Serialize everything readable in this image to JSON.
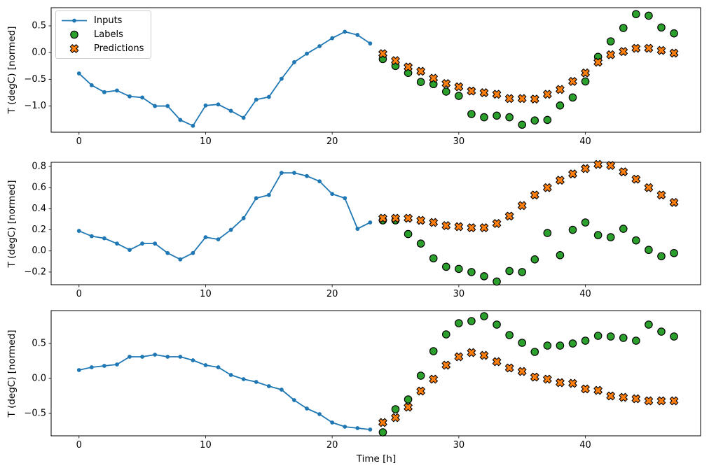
{
  "figure": {
    "background": "#ffffff",
    "legend": {
      "position": "upper-left",
      "items": [
        {
          "label": "Inputs",
          "marker": "line-dot",
          "color": "#1f77b4"
        },
        {
          "label": "Labels",
          "marker": "circle",
          "color": "#2ca02c"
        },
        {
          "label": "Predictions",
          "marker": "X",
          "color": "#ff7f0e"
        }
      ]
    },
    "colors": {
      "inputs": "#1f77b4",
      "labels": "#2ca02c",
      "predictions": "#ff7f0e",
      "marker_edge": "#000000",
      "spine": "#000000",
      "text": "#000000"
    }
  },
  "chart_data": [
    {
      "type": "line",
      "subplot": "top",
      "ylabel": "T (degC) [normed]",
      "xlabel": "",
      "grid": false,
      "xticks": [
        0,
        10,
        20,
        30,
        40
      ],
      "yticks": [
        0.5,
        0.0,
        -0.5,
        -1.0
      ],
      "xlim": [
        -2.2,
        49.1
      ],
      "ylim": [
        -1.49,
        0.84
      ],
      "series": [
        {
          "name": "Inputs",
          "type": "line-dot",
          "color": "#1f77b4",
          "x": [
            0,
            1,
            2,
            3,
            4,
            5,
            6,
            7,
            8,
            9,
            10,
            11,
            12,
            13,
            14,
            15,
            16,
            17,
            18,
            19,
            20,
            21,
            22,
            23
          ],
          "y": [
            -0.39,
            -0.61,
            -0.74,
            -0.71,
            -0.82,
            -0.84,
            -1.0,
            -1.0,
            -1.26,
            -1.37,
            -0.99,
            -0.97,
            -1.09,
            -1.22,
            -0.88,
            -0.83,
            -0.49,
            -0.18,
            -0.02,
            0.12,
            0.27,
            0.39,
            0.33,
            0.17
          ]
        },
        {
          "name": "Labels",
          "type": "scatter-circle",
          "color": "#2ca02c",
          "x": [
            24,
            25,
            26,
            27,
            28,
            29,
            30,
            31,
            32,
            33,
            34,
            35,
            36,
            37,
            38,
            39,
            40,
            41,
            42,
            43,
            44,
            45,
            46,
            47
          ],
          "y": [
            -0.12,
            -0.25,
            -0.38,
            -0.55,
            -0.59,
            -0.73,
            -0.81,
            -1.15,
            -1.21,
            -1.18,
            -1.21,
            -1.35,
            -1.27,
            -1.26,
            -0.99,
            -0.84,
            -0.54,
            -0.08,
            0.21,
            0.46,
            0.72,
            0.69,
            0.47,
            0.36
          ]
        },
        {
          "name": "Predictions",
          "type": "scatter-x",
          "color": "#ff7f0e",
          "x": [
            24,
            25,
            26,
            27,
            28,
            29,
            30,
            31,
            32,
            33,
            34,
            35,
            36,
            37,
            38,
            39,
            40,
            41,
            42,
            43,
            44,
            45,
            46,
            47
          ],
          "y": [
            -0.02,
            -0.15,
            -0.27,
            -0.35,
            -0.48,
            -0.58,
            -0.64,
            -0.72,
            -0.75,
            -0.78,
            -0.86,
            -0.86,
            -0.87,
            -0.78,
            -0.69,
            -0.54,
            -0.38,
            -0.18,
            -0.04,
            0.02,
            0.08,
            0.08,
            0.04,
            -0.01
          ]
        }
      ]
    },
    {
      "type": "line",
      "subplot": "middle",
      "ylabel": "T (degC) [normed]",
      "xlabel": "",
      "grid": false,
      "xticks": [
        0,
        10,
        20,
        30,
        40
      ],
      "yticks": [
        0.8,
        0.6,
        0.4,
        0.2,
        0.0,
        -0.2
      ],
      "xlim": [
        -2.2,
        49.1
      ],
      "ylim": [
        -0.32,
        0.84
      ],
      "series": [
        {
          "name": "Inputs",
          "type": "line-dot",
          "color": "#1f77b4",
          "x": [
            0,
            1,
            2,
            3,
            4,
            5,
            6,
            7,
            8,
            9,
            10,
            11,
            12,
            13,
            14,
            15,
            16,
            17,
            18,
            19,
            20,
            21,
            22,
            23
          ],
          "y": [
            0.19,
            0.14,
            0.12,
            0.07,
            0.01,
            0.07,
            0.07,
            -0.02,
            -0.08,
            -0.02,
            0.13,
            0.11,
            0.2,
            0.31,
            0.5,
            0.53,
            0.74,
            0.74,
            0.71,
            0.66,
            0.54,
            0.5,
            0.21,
            0.27
          ]
        },
        {
          "name": "Labels",
          "type": "scatter-circle",
          "color": "#2ca02c",
          "x": [
            24,
            25,
            26,
            27,
            28,
            29,
            30,
            31,
            32,
            33,
            34,
            35,
            36,
            37,
            38,
            39,
            40,
            41,
            42,
            43,
            44,
            45,
            46,
            47
          ],
          "y": [
            0.29,
            0.29,
            0.16,
            0.07,
            -0.07,
            -0.15,
            -0.17,
            -0.2,
            -0.24,
            -0.29,
            -0.19,
            -0.2,
            -0.08,
            0.17,
            -0.04,
            0.2,
            0.27,
            0.15,
            0.13,
            0.21,
            0.1,
            0.01,
            -0.05,
            -0.02
          ]
        },
        {
          "name": "Predictions",
          "type": "scatter-x",
          "color": "#ff7f0e",
          "x": [
            24,
            25,
            26,
            27,
            28,
            29,
            30,
            31,
            32,
            33,
            34,
            35,
            36,
            37,
            38,
            39,
            40,
            41,
            42,
            43,
            44,
            45,
            46,
            47
          ],
          "y": [
            0.31,
            0.31,
            0.31,
            0.29,
            0.27,
            0.24,
            0.23,
            0.22,
            0.22,
            0.26,
            0.33,
            0.43,
            0.53,
            0.6,
            0.67,
            0.73,
            0.78,
            0.82,
            0.81,
            0.75,
            0.68,
            0.6,
            0.53,
            0.46
          ]
        }
      ]
    },
    {
      "type": "line",
      "subplot": "bottom",
      "ylabel": "T (degC) [normed]",
      "xlabel": "Time [h]",
      "grid": false,
      "xticks": [
        0,
        10,
        20,
        30,
        40
      ],
      "yticks": [
        0.5,
        0.0,
        -0.5
      ],
      "xlim": [
        -2.2,
        49.1
      ],
      "ylim": [
        -0.82,
        0.97
      ],
      "series": [
        {
          "name": "Inputs",
          "type": "line-dot",
          "color": "#1f77b4",
          "x": [
            0,
            1,
            2,
            3,
            4,
            5,
            6,
            7,
            8,
            9,
            10,
            11,
            12,
            13,
            14,
            15,
            16,
            17,
            18,
            19,
            20,
            21,
            22,
            23
          ],
          "y": [
            0.12,
            0.16,
            0.18,
            0.2,
            0.31,
            0.31,
            0.34,
            0.31,
            0.31,
            0.26,
            0.19,
            0.16,
            0.05,
            -0.01,
            -0.05,
            -0.11,
            -0.16,
            -0.31,
            -0.43,
            -0.51,
            -0.63,
            -0.69,
            -0.71,
            -0.73
          ]
        },
        {
          "name": "Labels",
          "type": "scatter-circle",
          "color": "#2ca02c",
          "x": [
            24,
            25,
            26,
            27,
            28,
            29,
            30,
            31,
            32,
            33,
            34,
            35,
            36,
            37,
            38,
            39,
            40,
            41,
            42,
            43,
            44,
            45,
            46,
            47
          ],
          "y": [
            -0.77,
            -0.44,
            -0.3,
            0.04,
            0.39,
            0.63,
            0.79,
            0.82,
            0.89,
            0.77,
            0.62,
            0.51,
            0.38,
            0.47,
            0.47,
            0.5,
            0.54,
            0.61,
            0.6,
            0.58,
            0.54,
            0.77,
            0.67,
            0.6
          ]
        },
        {
          "name": "Predictions",
          "type": "scatter-x",
          "color": "#ff7f0e",
          "x": [
            24,
            25,
            26,
            27,
            28,
            29,
            30,
            31,
            32,
            33,
            34,
            35,
            36,
            37,
            38,
            39,
            40,
            41,
            42,
            43,
            44,
            45,
            46,
            47
          ],
          "y": [
            -0.63,
            -0.56,
            -0.41,
            -0.18,
            -0.01,
            0.19,
            0.31,
            0.37,
            0.33,
            0.24,
            0.15,
            0.1,
            0.02,
            -0.01,
            -0.06,
            -0.07,
            -0.15,
            -0.17,
            -0.25,
            -0.27,
            -0.29,
            -0.32,
            -0.32,
            -0.32
          ]
        }
      ]
    }
  ]
}
